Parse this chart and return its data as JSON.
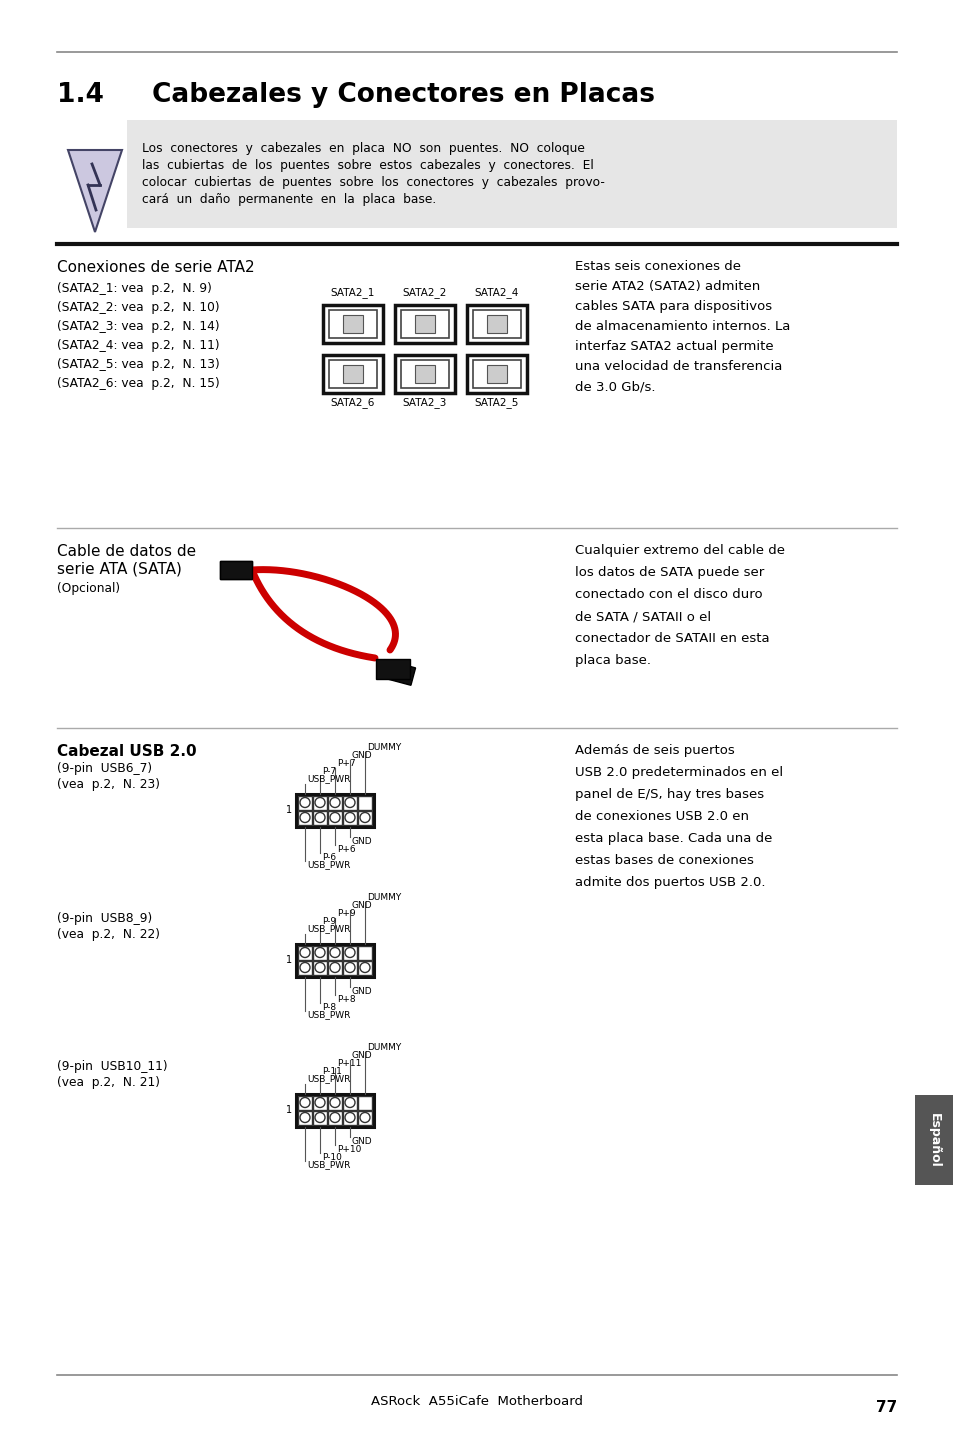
{
  "title_num": "1.4",
  "title_text": "Cabezales y Conectores en Placas",
  "warning_lines": [
    "Los  conectores  y  cabezales  en  placa  NO  son  puentes.  NO  coloque",
    "las  cubiertas  de  los  puentes  sobre  estos  cabezales  y  conectores.  El",
    "colocar  cubiertas  de  puentes  sobre  los  conectores  y  cabezales  provo-",
    "cará  un  daño  permanente  en  la  placa  base."
  ],
  "s1_title": "Conexiones de serie ATA2",
  "s1_items": [
    "(SATA2_1: vea  p.2,  N. 9)",
    "(SATA2_2: vea  p.2,  N. 10)",
    "(SATA2_3: vea  p.2,  N. 14)",
    "(SATA2_4: vea  p.2,  N. 11)",
    "(SATA2_5: vea  p.2,  N. 13)",
    "(SATA2_6: vea  p.2,  N. 15)"
  ],
  "sata_top_labels": [
    "SATA2_1",
    "SATA2_2",
    "SATA2_4"
  ],
  "sata_bot_labels": [
    "SATA2_6",
    "SATA2_3",
    "SATA2_5"
  ],
  "s1_right": "Estas seis conexiones de\nserie ATA2 (SATA2) admiten\ncables SATA para dispositivos\nde almacenamiento internos. La\ninterfaz SATA2 actual permite\nuna velocidad de transferencia\nde 3.0 Gb/s.",
  "s2_title1": "Cable de datos de",
  "s2_title2": "serie ATA (SATA)",
  "s2_sub": "(Opcional)",
  "s2_right": "Cualquier extremo del cable de\nlos datos de SATA puede ser\nconectado con el disco duro\nde SATA / SATAII o el\nconectador de SATAII en esta\nplaca base.",
  "s3_title": "Cabezal USB 2.0",
  "s3_g1": [
    "(9-pin  USB6_7)",
    "(vea  p.2,  N. 23)"
  ],
  "s3_g2": [
    "(9-pin  USB8_9)",
    "(vea  p.2,  N. 22)"
  ],
  "s3_g3": [
    "(9-pin  USB10_11)",
    "(vea  p.2,  N. 21)"
  ],
  "s3_right": "Además de seis puertos\nUSB 2.0 predeterminados en el\npanel de E/S, hay tres bases\nde conexiones USB 2.0 en\nesta placa base. Cada una de\nestas bases de conexiones\nadmite dos puertos USB 2.0.",
  "usb1_top": [
    "USB_PWR",
    "P-7",
    "P+7",
    "GND",
    "DUMMY"
  ],
  "usb1_bot": [
    "USB_PWR",
    "P-6",
    "P+6",
    "GND"
  ],
  "usb2_top": [
    "USB_PWR",
    "P-9",
    "P+9",
    "GND",
    "DUMMY"
  ],
  "usb2_bot": [
    "USB_PWR",
    "P-8",
    "P+8",
    "GND"
  ],
  "usb3_top": [
    "USB_PWR",
    "P-11",
    "P+11",
    "GND",
    "DUMMY"
  ],
  "usb3_bot": [
    "USB_PWR",
    "P-10",
    "P+10",
    "GND"
  ],
  "footer": "ASRock  A55iCafe  Motherboard",
  "page": "77",
  "tab": "Español",
  "bg": "#ffffff",
  "warn_bg": "#e6e6e6",
  "black": "#000000",
  "dark": "#1a1a1a",
  "gray": "#888888"
}
